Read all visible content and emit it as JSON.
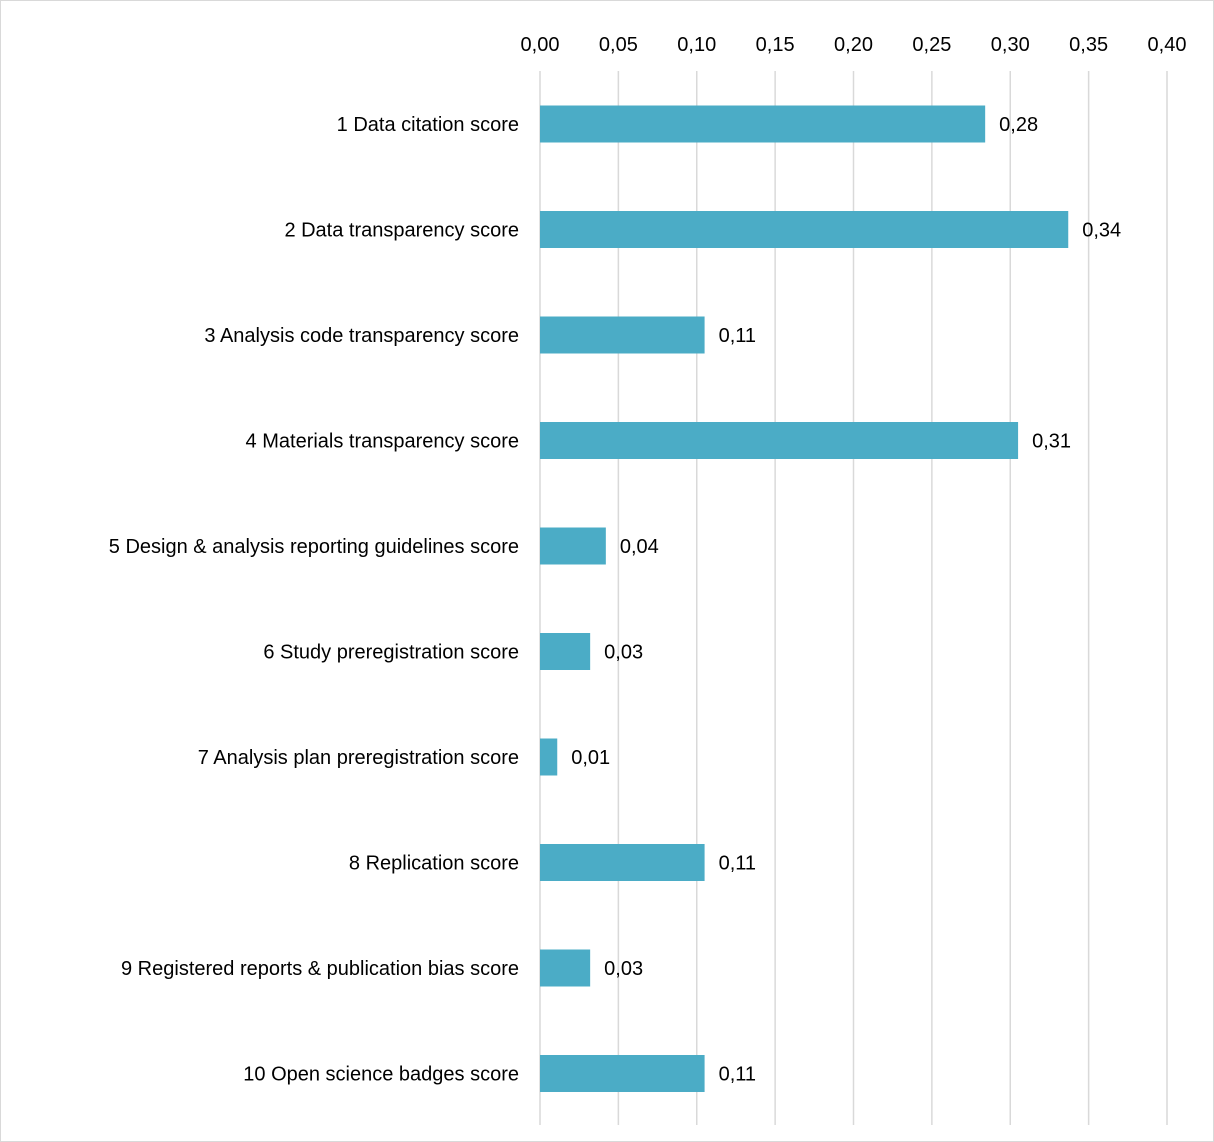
{
  "chart_data": {
    "type": "bar",
    "orientation": "horizontal",
    "categories": [
      "1 Data citation score",
      "2 Data transparency score",
      "3 Analysis code transparency score",
      "4 Materials transparency score",
      "5 Design & analysis reporting guidelines score",
      "6 Study preregistration score",
      "7 Analysis plan preregistration score",
      "8 Replication score",
      "9 Registered reports & publication bias score",
      "10 Open science badges score"
    ],
    "values": [
      0.284,
      0.337,
      0.105,
      0.305,
      0.042,
      0.032,
      0.011,
      0.105,
      0.032,
      0.105
    ],
    "data_labels": [
      "0,28",
      "0,34",
      "0,11",
      "0,31",
      "0,04",
      "0,03",
      "0,01",
      "0,11",
      "0,03",
      "0,11"
    ],
    "xlim": [
      0,
      0.4
    ],
    "x_ticks": [
      0,
      0.05,
      0.1,
      0.15,
      0.2,
      0.25,
      0.3,
      0.35,
      0.4
    ],
    "x_tick_labels": [
      "0,00",
      "0,05",
      "0,10",
      "0,15",
      "0,20",
      "0,25",
      "0,30",
      "0,35",
      "0,40"
    ],
    "x_axis_position": "top",
    "grid": true,
    "bar_color": "#4bacc6",
    "grid_color": "#d9d9d9",
    "title": "",
    "xlabel": "",
    "ylabel": ""
  }
}
